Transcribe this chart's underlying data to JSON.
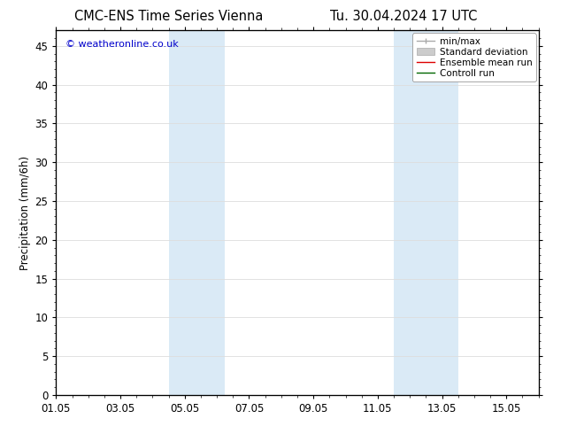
{
  "title_left": "CMC-ENS Time Series Vienna",
  "title_right": "Tu. 30.04.2024 17 UTC",
  "ylabel": "Precipitation (mm/6h)",
  "ylim": [
    0,
    47
  ],
  "yticks": [
    0,
    5,
    10,
    15,
    20,
    25,
    30,
    35,
    40,
    45
  ],
  "xlim": [
    0,
    15
  ],
  "xtick_labels": [
    "01.05",
    "03.05",
    "05.05",
    "07.05",
    "09.05",
    "11.05",
    "13.05",
    "15.05"
  ],
  "xtick_positions": [
    0,
    2,
    4,
    6,
    8,
    10,
    12,
    14
  ],
  "shaded_regions": [
    {
      "x_start": 3.5,
      "x_end": 5.25,
      "color": "#daeaf6"
    },
    {
      "x_start": 10.5,
      "x_end": 12.5,
      "color": "#daeaf6"
    }
  ],
  "copyright_text": "© weatheronline.co.uk",
  "copyright_color": "#0000cc",
  "legend_items": [
    {
      "label": "min/max",
      "color": "#aaaaaa",
      "linestyle": "-",
      "linewidth": 1.0
    },
    {
      "label": "Standard deviation",
      "color": "#cccccc",
      "linestyle": "-",
      "linewidth": 5
    },
    {
      "label": "Ensemble mean run",
      "color": "#dd0000",
      "linestyle": "-",
      "linewidth": 1.0
    },
    {
      "label": "Controll run",
      "color": "#006600",
      "linestyle": "-",
      "linewidth": 1.0
    }
  ],
  "background_color": "#ffffff",
  "axes_background_color": "#ffffff",
  "grid_color": "#dddddd",
  "tick_color": "#000000",
  "font_size_title": 10.5,
  "font_size_ticks": 8.5,
  "font_size_legend": 7.5,
  "font_size_ylabel": 8.5,
  "font_size_copyright": 8.0
}
